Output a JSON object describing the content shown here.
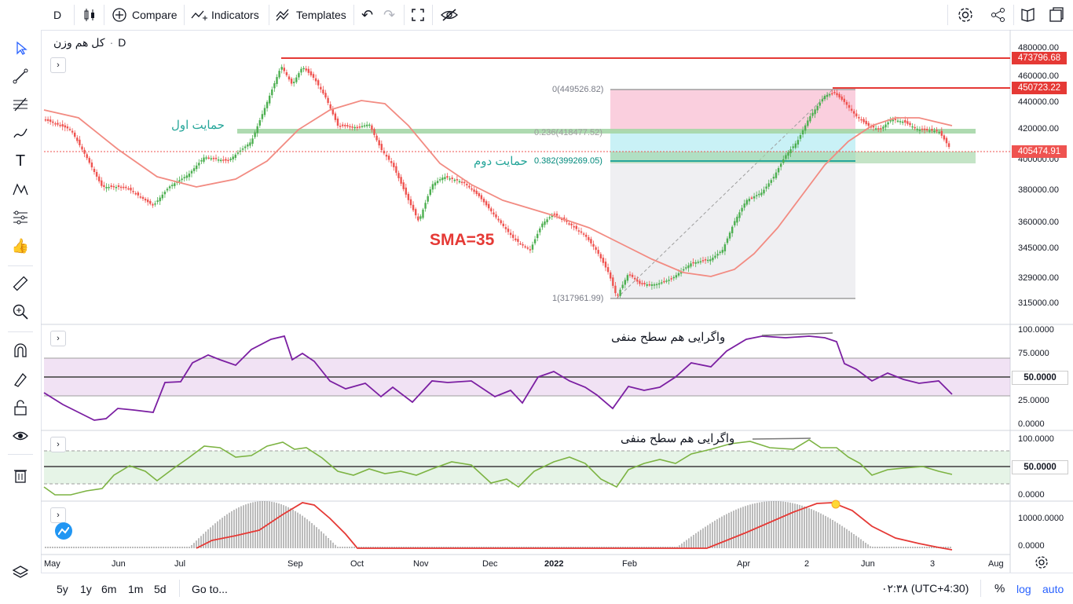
{
  "toolbar": {
    "interval": "D",
    "compare": "Compare",
    "indicators": "Indicators",
    "templates": "Templates"
  },
  "legend": {
    "symbol": "کل هم وزن",
    "interval": "D"
  },
  "annotations": {
    "support1": "حمایت اول",
    "support2": "حمایت دوم",
    "sma": "SMA=35",
    "div_rsi": "واگرایی هم سطح منفی",
    "div_stoch": "واگرایی هم سطح منفی"
  },
  "fib": {
    "level0": "0(449526.82)",
    "level236": "0.236(418477.52)",
    "level382": "0.382(399269.05)",
    "level1": "1(317961.99)"
  },
  "price_tags": {
    "top": "473796.68",
    "high": "450723.22",
    "last": "405474.91"
  },
  "colors": {
    "up": "#26a69a",
    "down": "#ef5350",
    "green_candle": "#4caf50",
    "sma": "#f28b82",
    "rsi": "#7b1fa2",
    "stoch": "#7cb342",
    "red_line": "#e53935",
    "fib_pink": "#f8bbd0",
    "fib_cyan": "#b2ebf2",
    "support": "#a5d6a7"
  },
  "price_axis": [
    "480000.00",
    "460000.00",
    "440000.00",
    "420000.00",
    "400000.00",
    "380000.00",
    "360000.00",
    "345000.00",
    "329000.00",
    "315000.00"
  ],
  "rsi_axis": [
    "100.0000",
    "75.0000",
    "50.0000",
    "25.0000",
    "0.0000"
  ],
  "rsi_value": "50.0000",
  "stoch_axis": [
    "100.0000",
    "0.0000"
  ],
  "stoch_value": "50.0000",
  "osc_axis": [
    "10000.0000",
    "0.0000"
  ],
  "x_axis": [
    "May",
    "Jun",
    "Jul",
    "Sep",
    "Oct",
    "Nov",
    "Dec",
    "2022",
    "Feb",
    "Apr",
    "2",
    "Jun",
    "3",
    "Aug"
  ],
  "bottom": {
    "ranges": [
      "5y",
      "1y",
      "6m",
      "1m",
      "5d"
    ],
    "goto": "Go to...",
    "time": "۰۲:۳۸ (UTC+4:30)",
    "percent": "%",
    "log": "log",
    "auto": "auto"
  }
}
